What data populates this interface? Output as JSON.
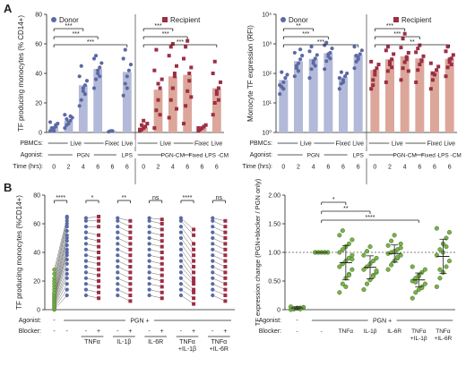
{
  "colors": {
    "donor": "#5b6aa4",
    "donor_bar": "#b3b9d8",
    "recipient": "#9b2f45",
    "recipient_bar": "#dca79a",
    "green": "#7ab24a",
    "green_edge": "#3f6b22",
    "axis": "#222222"
  },
  "panel_labels": [
    "A",
    "B"
  ],
  "shared": {
    "row_pbmc": "PBMCs:",
    "row_agonist": "Agonist:",
    "row_time": "Time (hrs):",
    "row_agonist_b": "Agonist:",
    "row_blocker_b": "Blocker:"
  },
  "chart_data": [
    {
      "id": "A1",
      "type": "bar",
      "ylabel": "TF producing monocytes (% CD14+)",
      "ylim": [
        0,
        80
      ],
      "yticks": [
        "0",
        "20",
        "40",
        "60",
        "80"
      ],
      "legend": [
        {
          "name": "Donor",
          "color": "donor"
        },
        {
          "name": "Recipient",
          "color": "recipient"
        }
      ],
      "time_labels": [
        "0",
        "2",
        "4",
        "6",
        "6",
        "6",
        "0",
        "2",
        "4",
        "6",
        "6",
        "6"
      ],
      "row_labels": {
        "pbmc": [
          {
            "text": "Live",
            "from": 0,
            "to": 3
          },
          {
            "text": "Fixed",
            "from": 4,
            "to": 4
          },
          {
            "text": "Live",
            "from": 5,
            "to": 5
          },
          {
            "text": "Live",
            "from": 6,
            "to": 9
          },
          {
            "text": "Fixed",
            "from": 10,
            "to": 10
          },
          {
            "text": "Live",
            "from": 11,
            "to": 11
          }
        ],
        "agonist": [
          {
            "text": "PGN",
            "from": 0,
            "to": 4
          },
          {
            "text": "LPS",
            "from": 5,
            "to": 5
          },
          {
            "text": "PGN-CM",
            "from": 6,
            "to": 10
          },
          {
            "text": "Fixed -CM",
            "from": 10,
            "to": 10
          },
          {
            "text": "LPS -CM",
            "from": 11,
            "to": 11
          }
        ]
      },
      "series": [
        {
          "name": "Donor",
          "group": "donor",
          "means": [
            4,
            8,
            32,
            43,
            1,
            41
          ],
          "points": [
            [
              1,
              2,
              3,
              5,
              6,
              7,
              3,
              1,
              4
            ],
            [
              3,
              5,
              6,
              8,
              10,
              12,
              9,
              7,
              11
            ],
            [
              18,
              22,
              28,
              32,
              35,
              38,
              45,
              30,
              26
            ],
            [
              30,
              36,
              40,
              44,
              47,
              50,
              52,
              42,
              38
            ],
            [
              0.5,
              1,
              1
            ],
            [
              25,
              33,
              38,
              42,
              46,
              50,
              56,
              30
            ]
          ]
        },
        {
          "name": "Recipient",
          "group": "recipient",
          "means": [
            3,
            29,
            38,
            39,
            3,
            30
          ],
          "points": [
            [
              1,
              2,
              3,
              4,
              6,
              2,
              5,
              8
            ],
            [
              3,
              15,
              22,
              30,
              36,
              42,
              56,
              33,
              12
            ],
            [
              10,
              22,
              30,
              38,
              45,
              52,
              58,
              60,
              40,
              16
            ],
            [
              6,
              18,
              28,
              35,
              44,
              50,
              58,
              62,
              40,
              24
            ],
            [
              1,
              2,
              3,
              4,
              5,
              3
            ],
            [
              12,
              20,
              26,
              30,
              34,
              40,
              48,
              28,
              22
            ]
          ]
        }
      ],
      "comparisons": [
        {
          "from": 0,
          "to": 2,
          "label": "***"
        },
        {
          "from": 0,
          "to": 3,
          "label": "***"
        },
        {
          "from": 0,
          "to": 5,
          "label": "***"
        },
        {
          "from": 6,
          "to": 8,
          "label": "***"
        },
        {
          "from": 6,
          "to": 9,
          "label": "***"
        },
        {
          "from": 6,
          "to": 11,
          "label": "***"
        }
      ]
    },
    {
      "id": "A2",
      "type": "bar",
      "ylabel": "Monocyte TF expression (RFI)",
      "yscale": "log",
      "ylim": [
        1,
        10000
      ],
      "yticks": [
        "10⁰",
        "10¹",
        "10²",
        "10³",
        "10⁴"
      ],
      "legend": [
        {
          "name": "Donor",
          "color": "donor"
        },
        {
          "name": "Recipient",
          "color": "recipient"
        }
      ],
      "time_labels": [
        "0",
        "2",
        "4",
        "6",
        "6",
        "6",
        "0",
        "2",
        "4",
        "6",
        "6",
        "6"
      ],
      "row_labels": {
        "pbmc": [
          {
            "text": "Live",
            "from": 0,
            "to": 3
          },
          {
            "text": "Fixed",
            "from": 4,
            "to": 4
          },
          {
            "text": "Live",
            "from": 5,
            "to": 5
          },
          {
            "text": "Live",
            "from": 6,
            "to": 9
          },
          {
            "text": "Fixed",
            "from": 10,
            "to": 10
          },
          {
            "text": "Live",
            "from": 11,
            "to": 11
          }
        ],
        "agonist": [
          {
            "text": "PGN",
            "from": 0,
            "to": 4
          },
          {
            "text": "LPS",
            "from": 5,
            "to": 5
          },
          {
            "text": "PGN-CM",
            "from": 6,
            "to": 10
          },
          {
            "text": "Fixed -CM",
            "from": 10,
            "to": 10
          },
          {
            "text": "LPS -CM",
            "from": 11,
            "to": 11
          }
        ]
      },
      "series": [
        {
          "name": "Donor",
          "group": "donor",
          "means": [
            60,
            260,
            310,
            480,
            75,
            430
          ],
          "points": [
            [
              20,
              35,
              50,
              70,
              90,
              40,
              110,
              30
            ],
            [
              80,
              150,
              220,
              300,
              400,
              500,
              180,
              120,
              650
            ],
            [
              70,
              140,
              220,
              320,
              420,
              560,
              800,
              260,
              180
            ],
            [
              140,
              260,
              380,
              500,
              700,
              900,
              1100,
              450,
              320
            ],
            [
              30,
              45,
              60,
              80,
              100,
              70,
              110,
              50
            ],
            [
              150,
              250,
              350,
              450,
              600,
              800,
              400,
              300
            ]
          ]
        },
        {
          "name": "Recipient",
          "group": "recipient",
          "means": [
            130,
            300,
            380,
            320,
            120,
            310
          ],
          "points": [
            [
              30,
              60,
              90,
              150,
              200,
              250,
              40,
              120
            ],
            [
              50,
              120,
              200,
              300,
              450,
              600,
              800,
              250,
              160
            ],
            [
              60,
              150,
              240,
              360,
              500,
              750,
              1500,
              2200,
              300,
              120
            ],
            [
              50,
              130,
              200,
              280,
              380,
              520,
              700,
              900,
              260
            ],
            [
              30,
              60,
              90,
              130,
              170,
              220,
              100
            ],
            [
              80,
              160,
              240,
              320,
              420,
              560,
              800,
              300,
              200
            ]
          ]
        }
      ],
      "comparisons": [
        {
          "from": 0,
          "to": 2,
          "label": "**"
        },
        {
          "from": 0,
          "to": 3,
          "label": "***"
        },
        {
          "from": 0,
          "to": 5,
          "label": "***"
        },
        {
          "from": 6,
          "to": 8,
          "label": "***"
        },
        {
          "from": 6,
          "to": 9,
          "label": "***"
        },
        {
          "from": 6,
          "to": 11,
          "label": "**"
        }
      ]
    },
    {
      "id": "B1",
      "type": "scatter",
      "ylabel": "TF producing monocytes (%CD14+)",
      "ylim": [
        0,
        80
      ],
      "yticks": [
        "0",
        "20",
        "40",
        "60",
        "80"
      ],
      "agonist_row": [
        "-",
        "PGN +"
      ],
      "blocker_row": [
        "-",
        "-",
        "-",
        "+",
        "-",
        "+",
        "-",
        "+",
        "-",
        "+",
        "-",
        "+"
      ],
      "blocker_names": [
        "TNFα",
        "IL-1β",
        "IL-6R",
        "TNFα +IL-1β",
        "TNFα +IL-6R"
      ],
      "significance": [
        "****",
        "*",
        "**",
        "ns",
        "****",
        "ns"
      ],
      "pairs": [
        {
          "left": [
            0,
            1,
            2,
            3,
            4,
            5,
            6,
            7,
            8,
            9,
            10,
            11,
            12,
            14,
            16,
            18,
            20,
            22,
            25,
            28
          ],
          "right": [
            10,
            14,
            18,
            22,
            25,
            28,
            32,
            35,
            38,
            40,
            42,
            45,
            48,
            50,
            52,
            55,
            58,
            60,
            62,
            64,
            65
          ]
        },
        {
          "left": [
            10,
            14,
            18,
            22,
            26,
            30,
            34,
            38,
            42,
            46,
            50,
            54,
            58,
            62,
            64
          ],
          "right": [
            8,
            12,
            16,
            20,
            24,
            28,
            32,
            36,
            40,
            44,
            48,
            52,
            58,
            62,
            65
          ]
        },
        {
          "left": [
            10,
            14,
            18,
            22,
            26,
            30,
            34,
            38,
            42,
            46,
            50,
            54,
            58,
            62,
            64
          ],
          "right": [
            6,
            10,
            14,
            18,
            22,
            26,
            30,
            34,
            38,
            42,
            46,
            50,
            54,
            58,
            62
          ]
        },
        {
          "left": [
            10,
            14,
            18,
            22,
            26,
            30,
            34,
            38,
            42,
            46,
            50,
            54,
            58,
            62,
            64
          ],
          "right": [
            8,
            12,
            16,
            20,
            24,
            28,
            32,
            36,
            40,
            44,
            48,
            52,
            56,
            60,
            63
          ]
        },
        {
          "left": [
            10,
            14,
            18,
            22,
            26,
            30,
            34,
            38,
            42,
            46,
            50,
            54,
            58,
            62,
            64
          ],
          "right": [
            4,
            8,
            12,
            14,
            18,
            20,
            22,
            26,
            30,
            34,
            38,
            42,
            46,
            52,
            56
          ]
        },
        {
          "left": [
            10,
            14,
            18,
            22,
            26,
            30,
            34,
            38,
            42,
            46,
            50,
            54,
            58,
            62,
            64
          ],
          "right": [
            6,
            10,
            14,
            18,
            22,
            26,
            30,
            34,
            38,
            42,
            46,
            50,
            54,
            58,
            62
          ]
        }
      ]
    },
    {
      "id": "B2",
      "type": "scatter",
      "ylabel": "TF expression change (PGN+blocker / PGN only)",
      "ylim": [
        0,
        2.0
      ],
      "yticks": [
        "0",
        "0.50",
        "1.00",
        "1.50",
        "2.00"
      ],
      "reference_line": 1.0,
      "agonist_row": [
        "-",
        "PGN +"
      ],
      "blocker_row": [
        "-",
        "-",
        "TNFα",
        "IL-1β",
        "IL-6R",
        "TNFα +IL-1β",
        "TNFα +IL-6R"
      ],
      "significance": [
        {
          "from": 1,
          "to": 2,
          "label": "*"
        },
        {
          "from": 1,
          "to": 3,
          "label": "**"
        },
        {
          "from": 1,
          "to": 5,
          "label": "****"
        }
      ],
      "groups": [
        {
          "mean": 0.03,
          "sd": 0.02,
          "points": [
            0,
            0.01,
            0.02,
            0.03,
            0.04,
            0.05,
            0.02,
            0.03,
            0.01,
            0.04
          ]
        },
        {
          "mean": 1.0,
          "sd": 0,
          "points": [
            1,
            1,
            1,
            1,
            1,
            1,
            1,
            1,
            1,
            1,
            1,
            1
          ]
        },
        {
          "mean": 0.82,
          "sd": 0.3,
          "points": [
            0.3,
            0.45,
            0.55,
            0.62,
            0.7,
            0.75,
            0.8,
            0.85,
            0.9,
            0.95,
            1.0,
            1.05,
            1.1,
            1.15,
            1.22,
            1.3,
            1.38,
            0.4,
            0.6,
            0.88
          ]
        },
        {
          "mean": 0.74,
          "sd": 0.2,
          "points": [
            0.35,
            0.45,
            0.52,
            0.6,
            0.65,
            0.7,
            0.75,
            0.8,
            0.85,
            0.9,
            0.95,
            1.02,
            1.1,
            0.58,
            0.68
          ]
        },
        {
          "mean": 0.98,
          "sd": 0.15,
          "points": [
            0.7,
            0.78,
            0.85,
            0.9,
            0.95,
            0.98,
            1.0,
            1.02,
            1.05,
            1.08,
            1.12,
            1.2,
            1.3,
            0.92,
            1.15
          ]
        },
        {
          "mean": 0.52,
          "sd": 0.12,
          "points": [
            0.2,
            0.3,
            0.35,
            0.4,
            0.45,
            0.5,
            0.55,
            0.6,
            0.65,
            0.7,
            0.75,
            0.48,
            0.58,
            0.38
          ]
        },
        {
          "mean": 0.93,
          "sd": 0.3,
          "points": [
            0.4,
            0.55,
            0.65,
            0.75,
            0.85,
            0.95,
            1.05,
            1.15,
            1.25,
            1.35,
            1.42,
            0.7,
            1.0,
            1.1
          ]
        }
      ]
    }
  ]
}
